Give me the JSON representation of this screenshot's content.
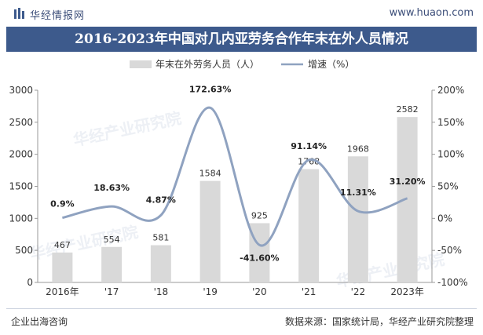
{
  "header": {
    "brand": "华经情报网",
    "url": "www.huaon.com"
  },
  "footer": {
    "left": "企业出海咨询",
    "right": "数据来源：国家统计局，华经产业研究院整理"
  },
  "watermark": "华经产业研究院",
  "colors": {
    "bar": "#d9d9d9",
    "line": "#8fa2c0",
    "title_bg": "#3d5a8c"
  },
  "chart_data": {
    "type": "bar",
    "title": "2016-2023年中国对几内亚劳务合作年末在外人员情况",
    "categories": [
      "2016年",
      "'17",
      "'18",
      "'19",
      "'20",
      "'21",
      "'22",
      "2023年"
    ],
    "series": [
      {
        "name": "年末在外劳务人员（人）",
        "type": "bar",
        "axis": "left",
        "values": [
          467,
          554,
          581,
          1584,
          925,
          1768,
          1968,
          2582
        ]
      },
      {
        "name": "增速（%）",
        "type": "line",
        "axis": "right",
        "values": [
          0.9,
          18.63,
          4.87,
          172.63,
          -41.6,
          91.14,
          11.31,
          31.2
        ]
      }
    ],
    "bar_labels": [
      "467",
      "554",
      "581",
      "1584",
      "925",
      "1768",
      "1968",
      "2582"
    ],
    "line_labels": [
      "0.9%",
      "18.63%",
      "4.87%",
      "172.63%",
      "-41.60%",
      "91.14%",
      "11.31%",
      "31.20%"
    ],
    "y_left": {
      "min": 0,
      "max": 3000,
      "ticks": [
        "0",
        "500",
        "1000",
        "1500",
        "2000",
        "2500",
        "3000"
      ]
    },
    "y_right": {
      "min": -100,
      "max": 200,
      "ticks": [
        "-100%",
        "-50%",
        "0%",
        "50%",
        "100%",
        "150%",
        "200%"
      ]
    },
    "legend_position": "top-center",
    "grid": false
  }
}
